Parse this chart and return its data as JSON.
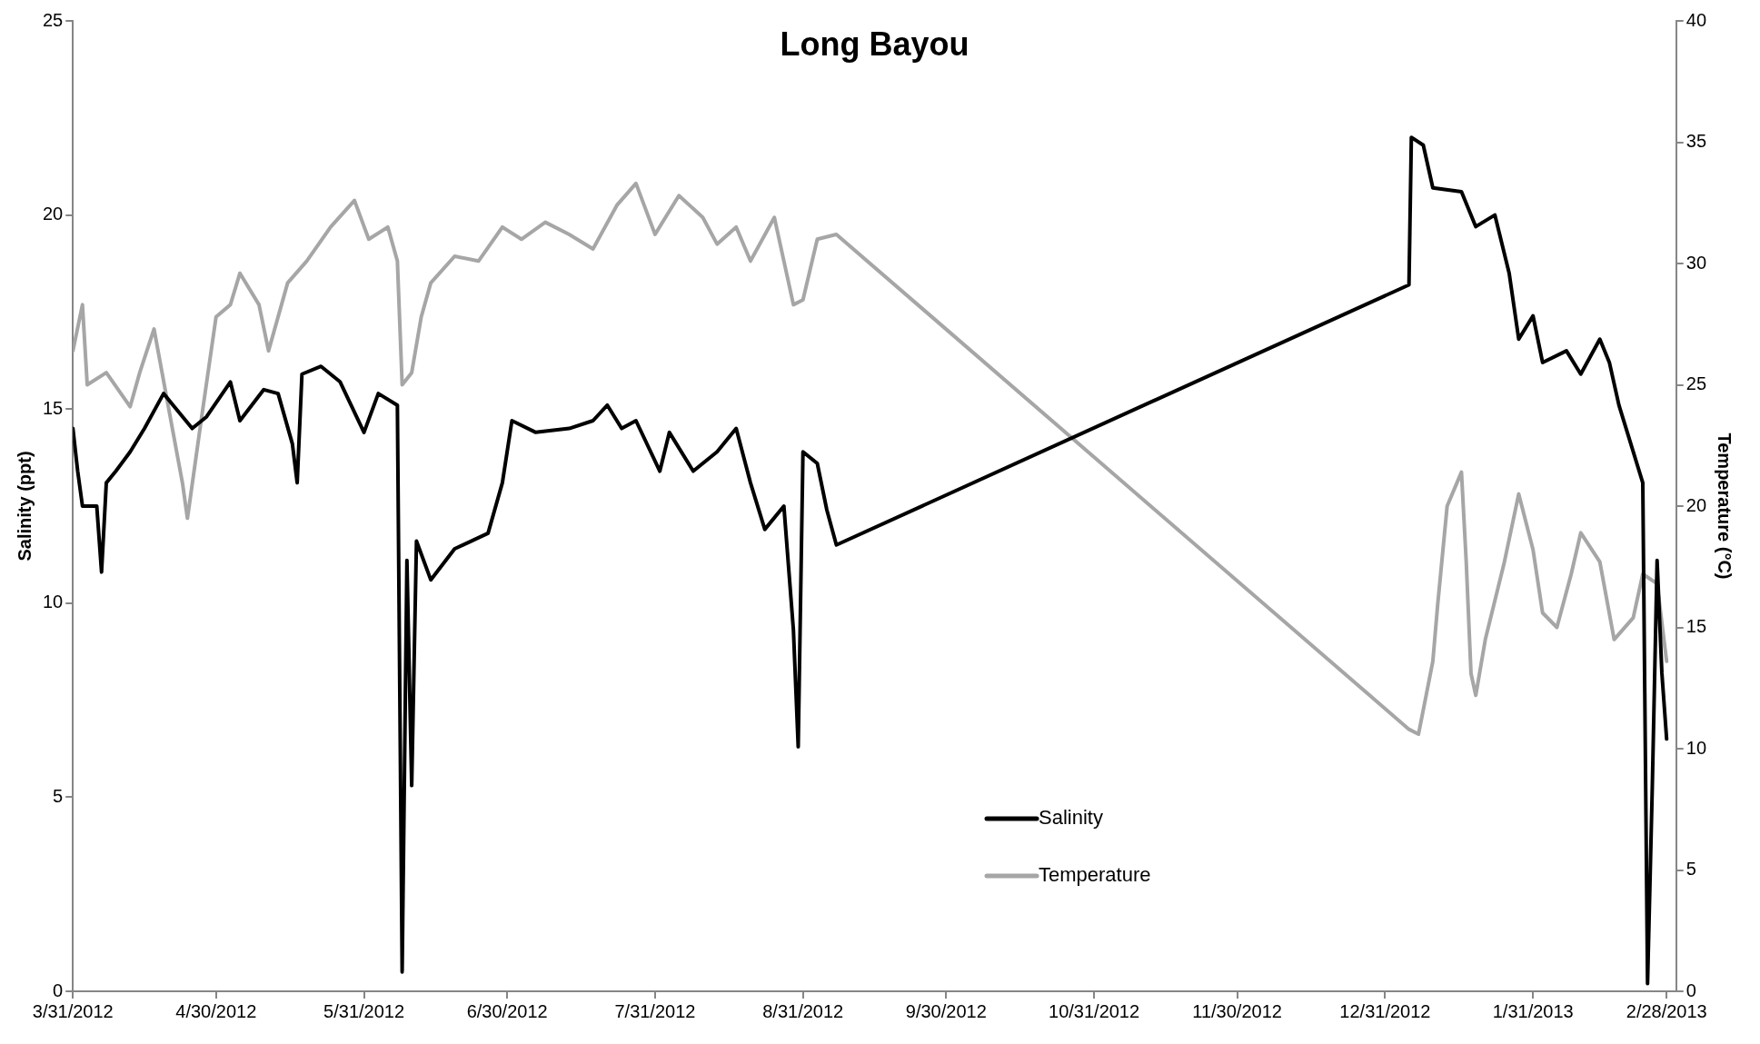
{
  "chart_data": {
    "type": "line",
    "title": "Long Bayou",
    "ylabel": "Salinity (ppt)",
    "y2label": "Temperature (°C)",
    "xlim": [
      "2012-03-31",
      "2013-03-02"
    ],
    "xticks": [
      {
        "value": "2012-03-31",
        "label": "3/31/2012"
      },
      {
        "value": "2012-04-30",
        "label": "4/30/2012"
      },
      {
        "value": "2012-05-31",
        "label": "5/31/2012"
      },
      {
        "value": "2012-06-30",
        "label": "6/30/2012"
      },
      {
        "value": "2012-07-31",
        "label": "7/31/2012"
      },
      {
        "value": "2012-08-31",
        "label": "8/31/2012"
      },
      {
        "value": "2012-09-30",
        "label": "9/30/2012"
      },
      {
        "value": "2012-10-31",
        "label": "10/31/2012"
      },
      {
        "value": "2012-11-30",
        "label": "11/30/2012"
      },
      {
        "value": "2012-12-31",
        "label": "12/31/2012"
      },
      {
        "value": "2013-01-31",
        "label": "1/31/2013"
      },
      {
        "value": "2013-02-28",
        "label": "2/28/2013"
      }
    ],
    "ylim": [
      0,
      25
    ],
    "yticks": [
      0,
      5,
      10,
      15,
      20,
      25
    ],
    "y2lim": [
      0,
      40
    ],
    "y2ticks": [
      0,
      5,
      10,
      15,
      20,
      25,
      30,
      35,
      40
    ],
    "grid": false,
    "legend": "bottom right",
    "marker": "none",
    "line_style": "solid",
    "series": [
      {
        "name": "Salinity",
        "color": "#000000",
        "x": [
          "2012-03-31",
          "2012-04-01",
          "2012-04-02",
          "2012-04-05",
          "2012-04-06",
          "2012-04-07",
          "2012-04-09",
          "2012-04-12",
          "2012-04-15",
          "2012-04-19",
          "2012-04-21",
          "2012-04-25",
          "2012-04-28",
          "2012-05-03",
          "2012-05-05",
          "2012-05-10",
          "2012-05-13",
          "2012-05-16",
          "2012-05-17",
          "2012-05-18",
          "2012-05-22",
          "2012-05-26",
          "2012-05-31",
          "2012-06-03",
          "2012-06-07",
          "2012-06-08",
          "2012-06-09",
          "2012-06-10",
          "2012-06-11",
          "2012-06-14",
          "2012-06-19",
          "2012-06-26",
          "2012-06-29",
          "2012-07-01",
          "2012-07-06",
          "2012-07-13",
          "2012-07-18",
          "2012-07-21",
          "2012-07-24",
          "2012-07-27",
          "2012-08-01",
          "2012-08-03",
          "2012-08-08",
          "2012-08-13",
          "2012-08-17",
          "2012-08-20",
          "2012-08-23",
          "2012-08-27",
          "2012-08-29",
          "2012-08-30",
          "2012-08-31",
          "2012-09-03",
          "2012-09-05",
          "2012-09-07",
          "2013-01-05",
          "2013-01-05T12:00",
          "2013-01-08",
          "2013-01-10",
          "2013-01-16",
          "2013-01-19",
          "2013-01-23",
          "2013-01-26",
          "2013-01-28",
          "2013-01-31",
          "2013-02-02",
          "2013-02-07",
          "2013-02-10",
          "2013-02-14",
          "2013-02-16",
          "2013-02-18",
          "2013-02-21",
          "2013-02-23",
          "2013-02-24",
          "2013-02-25",
          "2013-02-26",
          "2013-02-27",
          "2013-02-28"
        ],
        "values": [
          14.5,
          13.4,
          12.5,
          12.5,
          10.8,
          13.1,
          13.4,
          13.9,
          14.5,
          15.4,
          15.1,
          14.5,
          14.8,
          15.7,
          14.7,
          15.5,
          15.4,
          14.1,
          13.1,
          15.9,
          16.1,
          15.7,
          14.4,
          15.4,
          15.1,
          0.5,
          11.1,
          5.3,
          11.6,
          10.6,
          11.4,
          11.8,
          13.1,
          14.7,
          14.4,
          14.5,
          14.7,
          15.1,
          14.5,
          14.7,
          13.4,
          14.4,
          13.4,
          13.9,
          14.5,
          13.1,
          11.9,
          12.5,
          9.3,
          6.3,
          13.9,
          13.6,
          12.4,
          11.5,
          18.2,
          22.0,
          21.8,
          20.7,
          20.6,
          19.7,
          20.0,
          18.5,
          16.8,
          17.4,
          16.2,
          16.5,
          15.9,
          16.8,
          16.2,
          15.1,
          13.9,
          13.1,
          0.2,
          5.3,
          11.1,
          8.2,
          6.5
        ]
      },
      {
        "name": "Temperature",
        "color": "#a6a6a6",
        "axis": "y2",
        "x": [
          "2012-03-31",
          "2012-04-02",
          "2012-04-03",
          "2012-04-07",
          "2012-04-12",
          "2012-04-14",
          "2012-04-17",
          "2012-04-20",
          "2012-04-23",
          "2012-04-24",
          "2012-04-27",
          "2012-04-30",
          "2012-05-03",
          "2012-05-05",
          "2012-05-09",
          "2012-05-11",
          "2012-05-15",
          "2012-05-19",
          "2012-05-24",
          "2012-05-29",
          "2012-06-01",
          "2012-06-05",
          "2012-06-07",
          "2012-06-08",
          "2012-06-10",
          "2012-06-12",
          "2012-06-14",
          "2012-06-19",
          "2012-06-24",
          "2012-06-29",
          "2012-07-03",
          "2012-07-08",
          "2012-07-13",
          "2012-07-18",
          "2012-07-23",
          "2012-07-27",
          "2012-07-31",
          "2012-08-05",
          "2012-08-10",
          "2012-08-13",
          "2012-08-17",
          "2012-08-20",
          "2012-08-25",
          "2012-08-29",
          "2012-08-31",
          "2012-09-03",
          "2012-09-07",
          "2013-01-05",
          "2013-01-07",
          "2013-01-10",
          "2013-01-11",
          "2013-01-13",
          "2013-01-16",
          "2013-01-17",
          "2013-01-18",
          "2013-01-19",
          "2013-01-21",
          "2013-01-25",
          "2013-01-28",
          "2013-01-31",
          "2013-02-02",
          "2013-02-05",
          "2013-02-08",
          "2013-02-10",
          "2013-02-14",
          "2013-02-17",
          "2013-02-21",
          "2013-02-23",
          "2013-02-26",
          "2013-02-28"
        ],
        "values": [
          26.4,
          28.3,
          25.0,
          25.5,
          24.1,
          25.5,
          27.3,
          24.1,
          20.9,
          19.5,
          23.7,
          27.8,
          28.3,
          29.6,
          28.3,
          26.4,
          29.2,
          30.1,
          31.5,
          32.6,
          31.0,
          31.5,
          30.1,
          25.0,
          25.5,
          27.8,
          29.2,
          30.3,
          30.1,
          31.5,
          31.0,
          31.7,
          31.2,
          30.6,
          32.4,
          33.3,
          31.2,
          32.8,
          31.9,
          30.8,
          31.5,
          30.1,
          31.9,
          28.3,
          28.5,
          31.0,
          31.2,
          10.8,
          10.6,
          13.6,
          15.9,
          20.0,
          21.4,
          17.7,
          13.1,
          12.2,
          14.5,
          17.7,
          20.5,
          18.2,
          15.6,
          15.0,
          17.2,
          18.9,
          17.7,
          14.5,
          15.4,
          17.2,
          16.8,
          13.6
        ]
      }
    ]
  }
}
